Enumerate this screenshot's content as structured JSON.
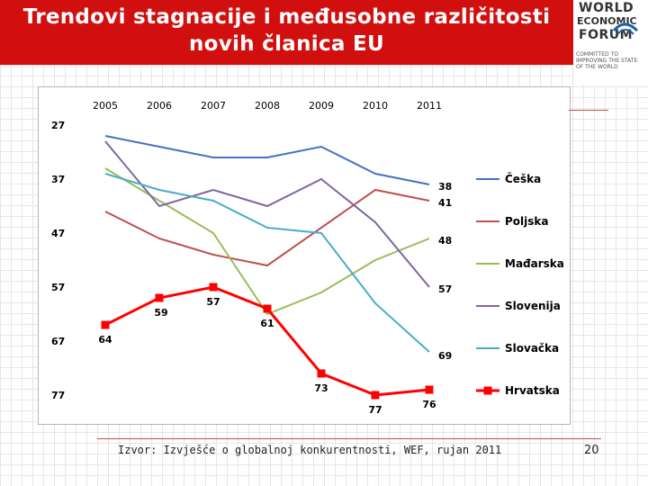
{
  "slide": {
    "title_line1": "Trendovi stagnacije i međusobne različitosti",
    "title_line2": "novih članica EU",
    "source": "Izvor: Izvješće o globalnoj konkurentnosti, WEF, rujan 2011",
    "page_number": "20",
    "title_bg_color": "#d20f0f"
  },
  "logo": {
    "line1": "WORLD",
    "line2": "ECONOMIC",
    "line3": "FORUM",
    "tagline": "COMMITTED TO IMPROVING THE STATE OF THE WORLD",
    "icon": "globe-emblem-icon"
  },
  "chart_data": {
    "type": "line",
    "x": [
      "2005",
      "2006",
      "2007",
      "2008",
      "2009",
      "2010",
      "2011"
    ],
    "ylim": [
      27,
      77
    ],
    "y_inverted": true,
    "y_ticks": [
      27,
      37,
      47,
      57,
      67,
      77
    ],
    "x_axis_position": "top",
    "legend_position": "right",
    "grid": false,
    "series": [
      {
        "name": "Češka",
        "color": "#4472c4",
        "values": [
          29,
          31,
          33,
          33,
          31,
          36,
          38
        ],
        "marker": "none",
        "end_label": "38"
      },
      {
        "name": "Poljska",
        "color": "#c0504d",
        "values": [
          43,
          48,
          51,
          53,
          46,
          39,
          41
        ],
        "marker": "none",
        "end_label": "41"
      },
      {
        "name": "Mađarska",
        "color": "#9bbb59",
        "values": [
          35,
          41,
          47,
          62,
          58,
          52,
          48
        ],
        "marker": "none",
        "end_label": "48"
      },
      {
        "name": "Slovenija",
        "color": "#8064a2",
        "values": [
          30,
          42,
          39,
          42,
          37,
          45,
          57
        ],
        "marker": "none",
        "end_label": "57"
      },
      {
        "name": "Slovačka",
        "color": "#4bacc6",
        "values": [
          36,
          39,
          41,
          46,
          47,
          60,
          69
        ],
        "marker": "none",
        "end_label": "69"
      },
      {
        "name": "Hrvatska",
        "color": "#ff0000",
        "values": [
          64,
          59,
          57,
          61,
          73,
          77,
          76
        ],
        "marker": "square",
        "point_labels": [
          "64",
          "59",
          "57",
          "61",
          "73",
          "77",
          "76"
        ]
      }
    ]
  }
}
